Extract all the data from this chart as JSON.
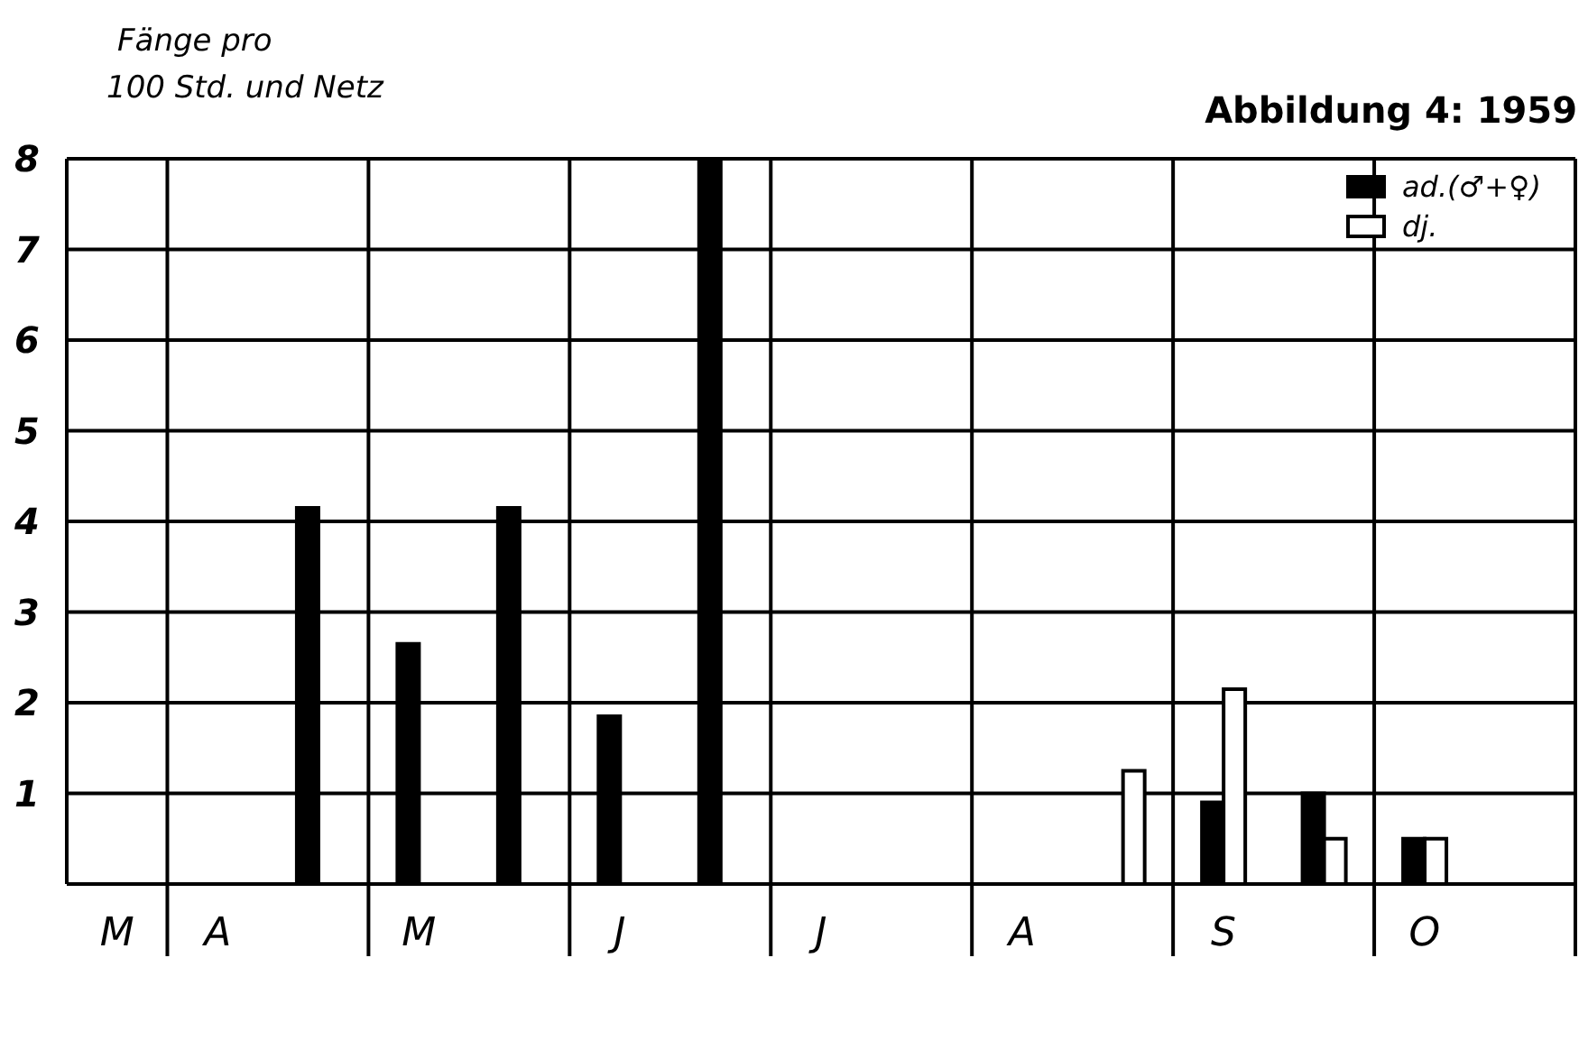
{
  "chart_data": {
    "type": "bar",
    "title": "Abbildung 4: 1959",
    "ylabel": "Fänge pro\n100 Std. und Netz",
    "categories": [
      "M",
      "A",
      null,
      "M",
      null,
      "J",
      null,
      "J",
      null,
      "A",
      null,
      "S",
      null,
      "O",
      null
    ],
    "series": [
      {
        "name": "ad.(♂+♀)",
        "color": "#000000",
        "values": [
          null,
          null,
          4.15,
          2.65,
          4.15,
          1.85,
          8.0,
          null,
          null,
          null,
          null,
          0.9,
          1.0,
          0.5,
          null
        ]
      },
      {
        "name": "dj.",
        "color": "#ffffff",
        "values": [
          null,
          null,
          null,
          null,
          null,
          null,
          null,
          null,
          null,
          null,
          1.25,
          2.15,
          0.5,
          0.5,
          null
        ]
      }
    ],
    "ylim": [
      0,
      8
    ],
    "yticks": [
      {
        "value": 0,
        "label": null
      },
      1,
      2,
      3,
      4,
      5,
      6,
      7,
      8
    ],
    "grid": true,
    "legend": "top right"
  }
}
